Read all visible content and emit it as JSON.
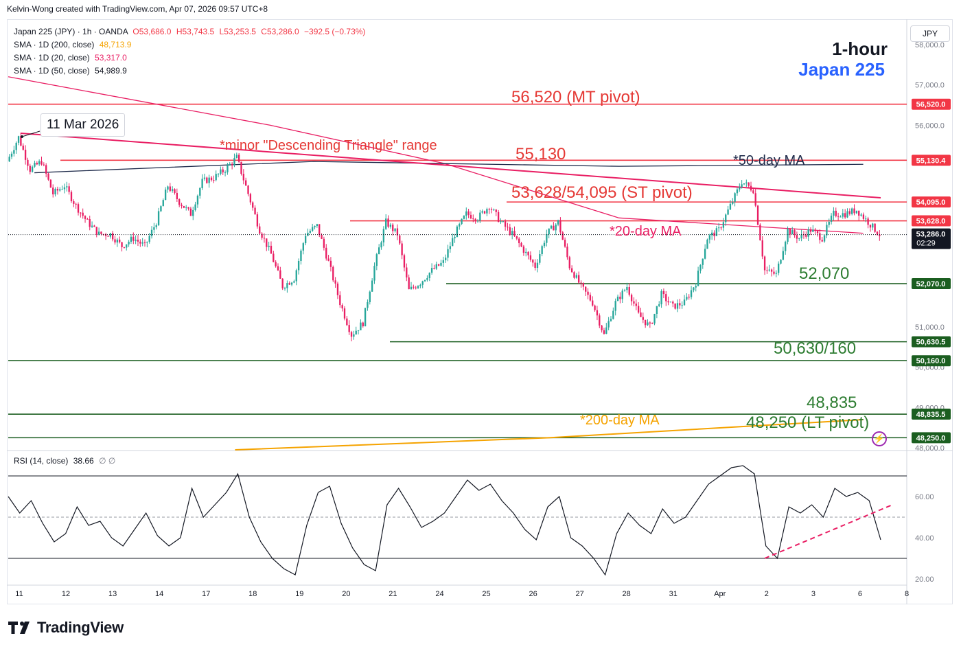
{
  "header": {
    "credit": "Kelvin-Wong created with TradingView.com, Apr 07, 2026 09:57 UTC+8"
  },
  "legend": {
    "symbol_line": {
      "symbol": "Japan 225 (JPY) · 1h · OANDA",
      "o": "O53,686.0",
      "h": "H53,743.5",
      "l": "L53,253.5",
      "c": "C53,286.0",
      "chg": "−392.5 (−0.73%)"
    },
    "sma200": {
      "label": "SMA · 1D (200, close)",
      "value": "48,713.9",
      "color": "#f5a300"
    },
    "sma20": {
      "label": "SMA · 1D (20, close)",
      "value": "53,317.0",
      "color": "#e91e63"
    },
    "sma50": {
      "label": "SMA · 1D (50, close)",
      "value": "54,989.9",
      "color": "#131722"
    }
  },
  "title": {
    "timeframe": "1-hour",
    "symbol": "Japan 225"
  },
  "currency_badge": "JPY",
  "callout": {
    "date": "11 Mar 2026"
  },
  "annotations": {
    "mt_pivot": "56,520 (MT pivot)",
    "triangle": "*minor \"Descending Triangle\" range",
    "level_55130": "55,130",
    "ma50": "*50-day MA",
    "st_pivot": "53,628/54,095 (ST pivot)",
    "ma20": "*20-day MA",
    "level_52070": "52,070",
    "level_50630": "50,630/160",
    "level_48835": "48,835",
    "ma200": "*200-day MA",
    "lt_pivot": "48,250 (LT pivot)"
  },
  "rsi_legend": {
    "label": "RSI (14, close)",
    "value": "38.66",
    "extra": "∅ ∅"
  },
  "colors": {
    "up": "#26a69a",
    "down": "#e91e63",
    "red_level": "#f23645",
    "green_level": "#1b5e20",
    "ma50": "#1e2a4a",
    "ma20": "#e91e63",
    "ma200": "#f5a300",
    "label_green": "#2e7d32",
    "label_red": "#e53935"
  },
  "chart_data": [
    {
      "type": "candlestick",
      "title": "Japan 225 (JPY) · 1h · OANDA",
      "ylim": [
        47950,
        58150
      ],
      "y_ticks": [
        48000,
        49000,
        50000,
        51000,
        56000,
        57000,
        58000
      ],
      "y_tick_labels": [
        "48,000.0",
        "49,000.0",
        "50,000.0",
        "51,000.0",
        "56,000.0",
        "57,000.0",
        "58,000.0"
      ],
      "x_labels": [
        "11",
        "12",
        "13",
        "14",
        "17",
        "18",
        "19",
        "20",
        "21",
        "24",
        "25",
        "26",
        "27",
        "28",
        "31",
        "Apr",
        "2",
        "3",
        "6",
        "8"
      ],
      "price_path_closes": [
        55100,
        55700,
        54900,
        55100,
        54300,
        54500,
        54000,
        53600,
        53300,
        53300,
        53000,
        53200,
        53000,
        53600,
        54500,
        54100,
        53800,
        54600,
        54700,
        54900,
        55200,
        54300,
        53400,
        52800,
        52000,
        52200,
        53300,
        53500,
        52600,
        51600,
        50800,
        51100,
        52500,
        53600,
        53300,
        51900,
        52100,
        52400,
        52600,
        53300,
        53800,
        53700,
        54000,
        53600,
        53300,
        52900,
        52500,
        53300,
        53600,
        52500,
        52000,
        51600,
        50800,
        51600,
        52000,
        51300,
        51000,
        51800,
        51500,
        51600,
        52100,
        53200,
        53400,
        54000,
        54600,
        54400,
        52400,
        52300,
        53400,
        53200,
        53400,
        53200,
        53800,
        53800,
        53900,
        53600,
        53286
      ],
      "last_price": "53,286.0",
      "countdown": "02:29",
      "levels": [
        {
          "value": 56520,
          "label": "56,520.0",
          "kind": "red"
        },
        {
          "value": 55130,
          "label": "55,130.4",
          "kind": "red"
        },
        {
          "value": 54095,
          "label": "54,095.0",
          "kind": "red"
        },
        {
          "value": 53628,
          "label": "53,628.0",
          "kind": "red"
        },
        {
          "value": 52070,
          "label": "52,070.0",
          "kind": "green"
        },
        {
          "value": 50630,
          "label": "50,630.5",
          "kind": "green"
        },
        {
          "value": 50160,
          "label": "50,160.0",
          "kind": "green"
        },
        {
          "value": 48835,
          "label": "48,835.5",
          "kind": "green"
        },
        {
          "value": 48250,
          "label": "48,250.0",
          "kind": "green"
        }
      ],
      "moving_averages": [
        {
          "name": "SMA · 1D (200, close)",
          "points": [
            [
              0.26,
              47950
            ],
            [
              0.62,
              48250
            ],
            [
              0.98,
              48700
            ]
          ]
        },
        {
          "name": "SMA · 1D (20, close)",
          "points": [
            [
              0.0,
              57200
            ],
            [
              0.3,
              56000
            ],
            [
              0.5,
              55050
            ],
            [
              0.7,
              53700
            ],
            [
              0.98,
              53320
            ]
          ]
        },
        {
          "name": "SMA · 1D (50, close)",
          "points": [
            [
              0.03,
              54820
            ],
            [
              0.35,
              55100
            ],
            [
              0.7,
              54980
            ],
            [
              0.98,
              55030
            ]
          ]
        }
      ],
      "trendlines": [
        {
          "name": "descending triangle upper",
          "points": [
            [
              0.014,
              55800
            ],
            [
              1.0,
              54200
            ]
          ]
        }
      ]
    },
    {
      "type": "line",
      "title": "RSI (14, close)",
      "ylim": [
        17,
        82
      ],
      "y_ticks": [
        20,
        40,
        60
      ],
      "y_tick_labels": [
        "20.00",
        "40.00",
        "60.00"
      ],
      "bands": [
        30,
        50,
        70
      ],
      "values": [
        60,
        52,
        58,
        47,
        38,
        42,
        55,
        46,
        48,
        40,
        36,
        44,
        52,
        41,
        36,
        40,
        64,
        50,
        56,
        62,
        71,
        50,
        38,
        30,
        25,
        22,
        46,
        62,
        65,
        47,
        35,
        27,
        24,
        56,
        64,
        55,
        45,
        48,
        52,
        60,
        68,
        63,
        66,
        58,
        52,
        44,
        39,
        55,
        60,
        40,
        36,
        30,
        22,
        42,
        52,
        46,
        42,
        54,
        47,
        50,
        58,
        66,
        70,
        74,
        75,
        71,
        36,
        30,
        55,
        52,
        56,
        50,
        64,
        60,
        62,
        58,
        39
      ]
    }
  ]
}
